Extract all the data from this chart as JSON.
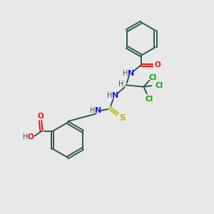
{
  "background_color": "#e8e8e8",
  "bond_color": "#2d5a4e",
  "N_color": "#1a1aee",
  "O_color": "#ee1111",
  "S_color": "#bbbb00",
  "Cl_color": "#00aa00",
  "H_color": "#2d5a4e",
  "figsize": [
    3.0,
    3.0
  ],
  "dpi": 100,
  "xlim": [
    0,
    10
  ],
  "ylim": [
    0,
    10
  ]
}
